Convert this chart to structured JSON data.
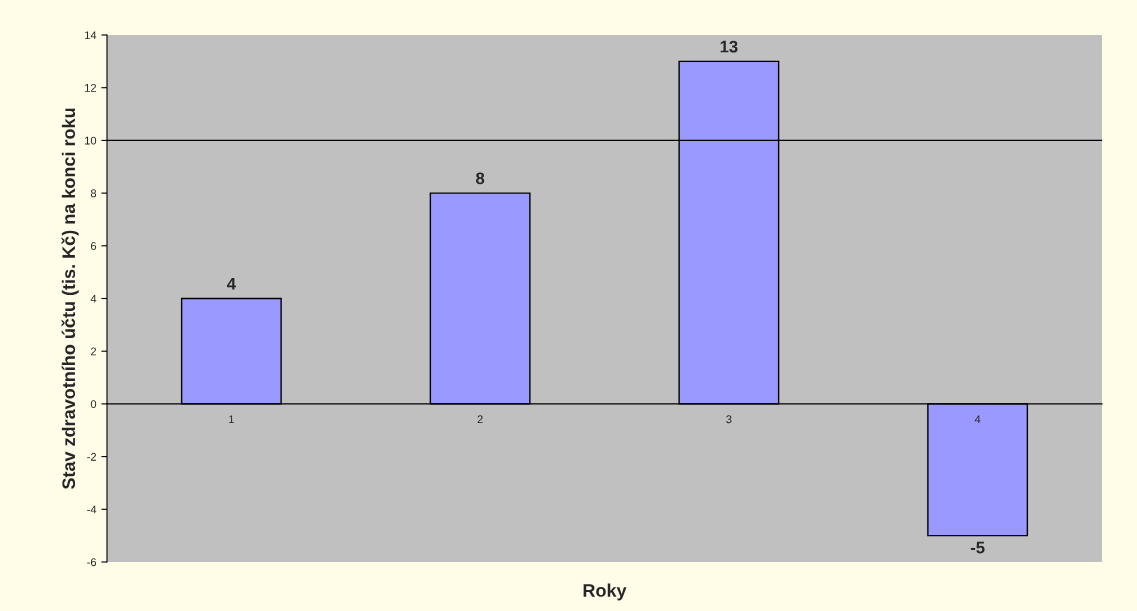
{
  "chart_data": {
    "type": "bar",
    "xlabel": "Roky",
    "ylabel": "Stav zdravotního účtu (tis. Kč) na konci roku",
    "categories": [
      "1",
      "2",
      "3",
      "4"
    ],
    "values": [
      4,
      8,
      13,
      -5
    ],
    "color": "#9999ff",
    "ylim": [
      -6,
      14
    ],
    "yticks": [
      -6,
      -4,
      -2,
      0,
      2,
      4,
      6,
      8,
      10,
      12,
      14
    ],
    "ref_lines": [
      {
        "axis": "y",
        "value": 10,
        "label": null,
        "color": "#000000"
      }
    ],
    "data_labels": true,
    "grid": false,
    "legend": false
  }
}
